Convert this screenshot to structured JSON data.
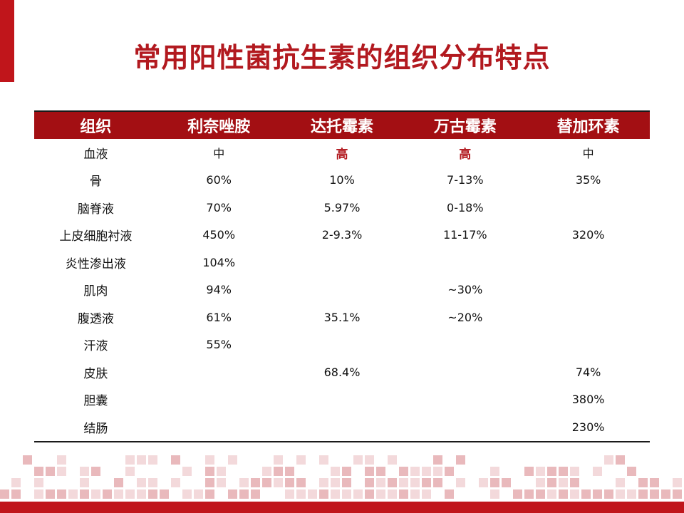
{
  "title": "常用阳性菌抗生素的组织分布特点",
  "table": {
    "headers": [
      "组织",
      "利奈唑胺",
      "达托霉素",
      "万古霉素",
      "替加环素"
    ],
    "rows": [
      [
        "血液",
        "中",
        "高",
        "高",
        "中"
      ],
      [
        "骨",
        "60%",
        "10%",
        "7-13%",
        "35%"
      ],
      [
        "脑脊液",
        "70%",
        "5.97%",
        "0-18%",
        ""
      ],
      [
        "上皮细胞衬液",
        "450%",
        "2-9.3%",
        "11-17%",
        "320%"
      ],
      [
        "炎性渗出液",
        "104%",
        "",
        "",
        ""
      ],
      [
        "肌肉",
        "94%",
        "",
        "~30%",
        ""
      ],
      [
        "腹透液",
        "61%",
        "35.1%",
        "~20%",
        ""
      ],
      [
        "汗液",
        "55%",
        "",
        "",
        ""
      ],
      [
        "皮肤",
        "",
        "68.4%",
        "",
        "74%"
      ],
      [
        "胆囊",
        "",
        "",
        "",
        "380%"
      ],
      [
        "结肠",
        "",
        "",
        "",
        "230%"
      ]
    ],
    "highlighted_values": [
      "高"
    ]
  },
  "colors": {
    "accent": "#c0151b",
    "header_bg": "#a30f13",
    "title": "#b2191f"
  }
}
